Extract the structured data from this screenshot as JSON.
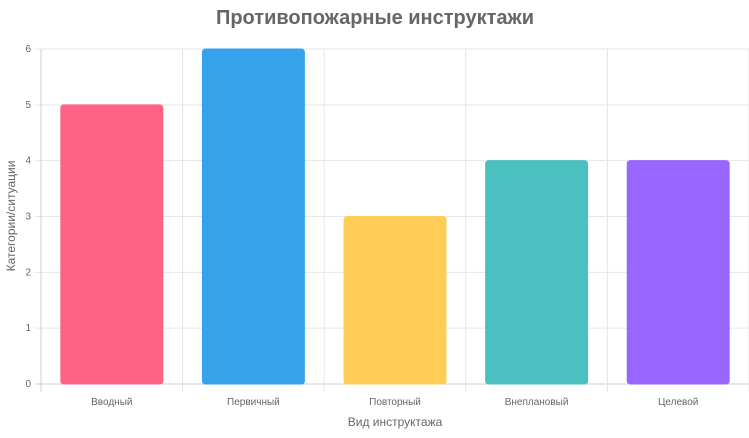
{
  "chart_data": {
    "type": "bar",
    "title": "Противопожарные инструктажи",
    "xlabel": "Вид инструктажа",
    "ylabel": "Категории/ситуации",
    "categories": [
      "Вводный",
      "Первичный",
      "Повторный",
      "Внеплановый",
      "Целевой"
    ],
    "values": [
      5,
      6,
      3,
      4,
      4
    ],
    "colors": [
      "#ff6384",
      "#36a2eb",
      "#ffcd56",
      "#4bc0c0",
      "#9966ff"
    ],
    "ylim": [
      0,
      6
    ],
    "yticks": [
      "0",
      "1",
      "2",
      "3",
      "4",
      "5",
      "6"
    ],
    "grid": true,
    "legend": "none"
  }
}
